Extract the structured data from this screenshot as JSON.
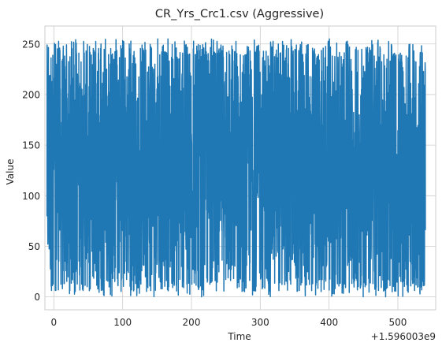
{
  "chart_data": {
    "type": "line",
    "title": "CR_Yrs_Crc1.csv (Aggressive)",
    "xlabel": "Time",
    "ylabel": "Value",
    "x_offset_label": "+1.596003e9",
    "xlim": [
      -13,
      555
    ],
    "ylim": [
      -12.75,
      267.75
    ],
    "xticks": [
      0,
      100,
      200,
      300,
      400,
      500
    ],
    "yticks": [
      0,
      50,
      100,
      150,
      200,
      250
    ],
    "grid": true,
    "legend": "none",
    "series": [
      {
        "color": "#1f77b4",
        "x_range": [
          -10,
          540
        ],
        "description_values": {
          "min": 0,
          "max": 255
        }
      }
    ]
  }
}
